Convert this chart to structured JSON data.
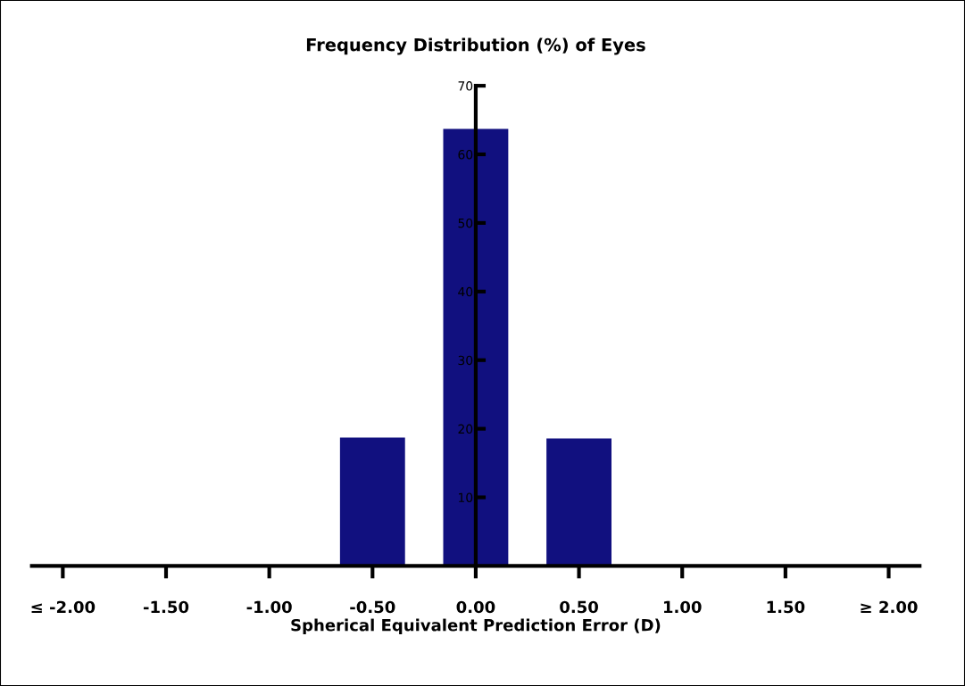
{
  "chart_data": {
    "type": "bar",
    "title": "Frequency Distribution (%) of Eyes",
    "xlabel": "Spherical Equivalent Prediction Error (D)",
    "categories": [
      "≤ -2.00",
      "-1.50",
      "-1.00",
      "-0.50",
      "0.00",
      "0.50",
      "1.00",
      "1.50",
      "≥ 2.00"
    ],
    "values": [
      0,
      0,
      0,
      18.7,
      63.7,
      18.6,
      0,
      0,
      0
    ],
    "color": "#11107f",
    "ylim": [
      0,
      70
    ],
    "yticks": [
      10,
      20,
      30,
      40,
      50,
      60,
      70
    ],
    "grid": false
  }
}
